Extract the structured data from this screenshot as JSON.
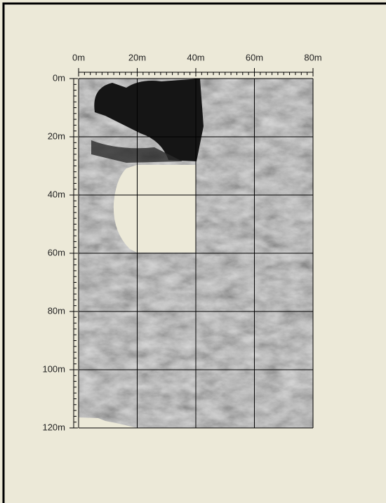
{
  "plot": {
    "x_labels": [
      "0m",
      "20m",
      "40m",
      "60m",
      "80m"
    ],
    "y_labels": [
      "0m",
      "20m",
      "40m",
      "60m",
      "80m",
      "100m",
      "120m"
    ]
  }
}
